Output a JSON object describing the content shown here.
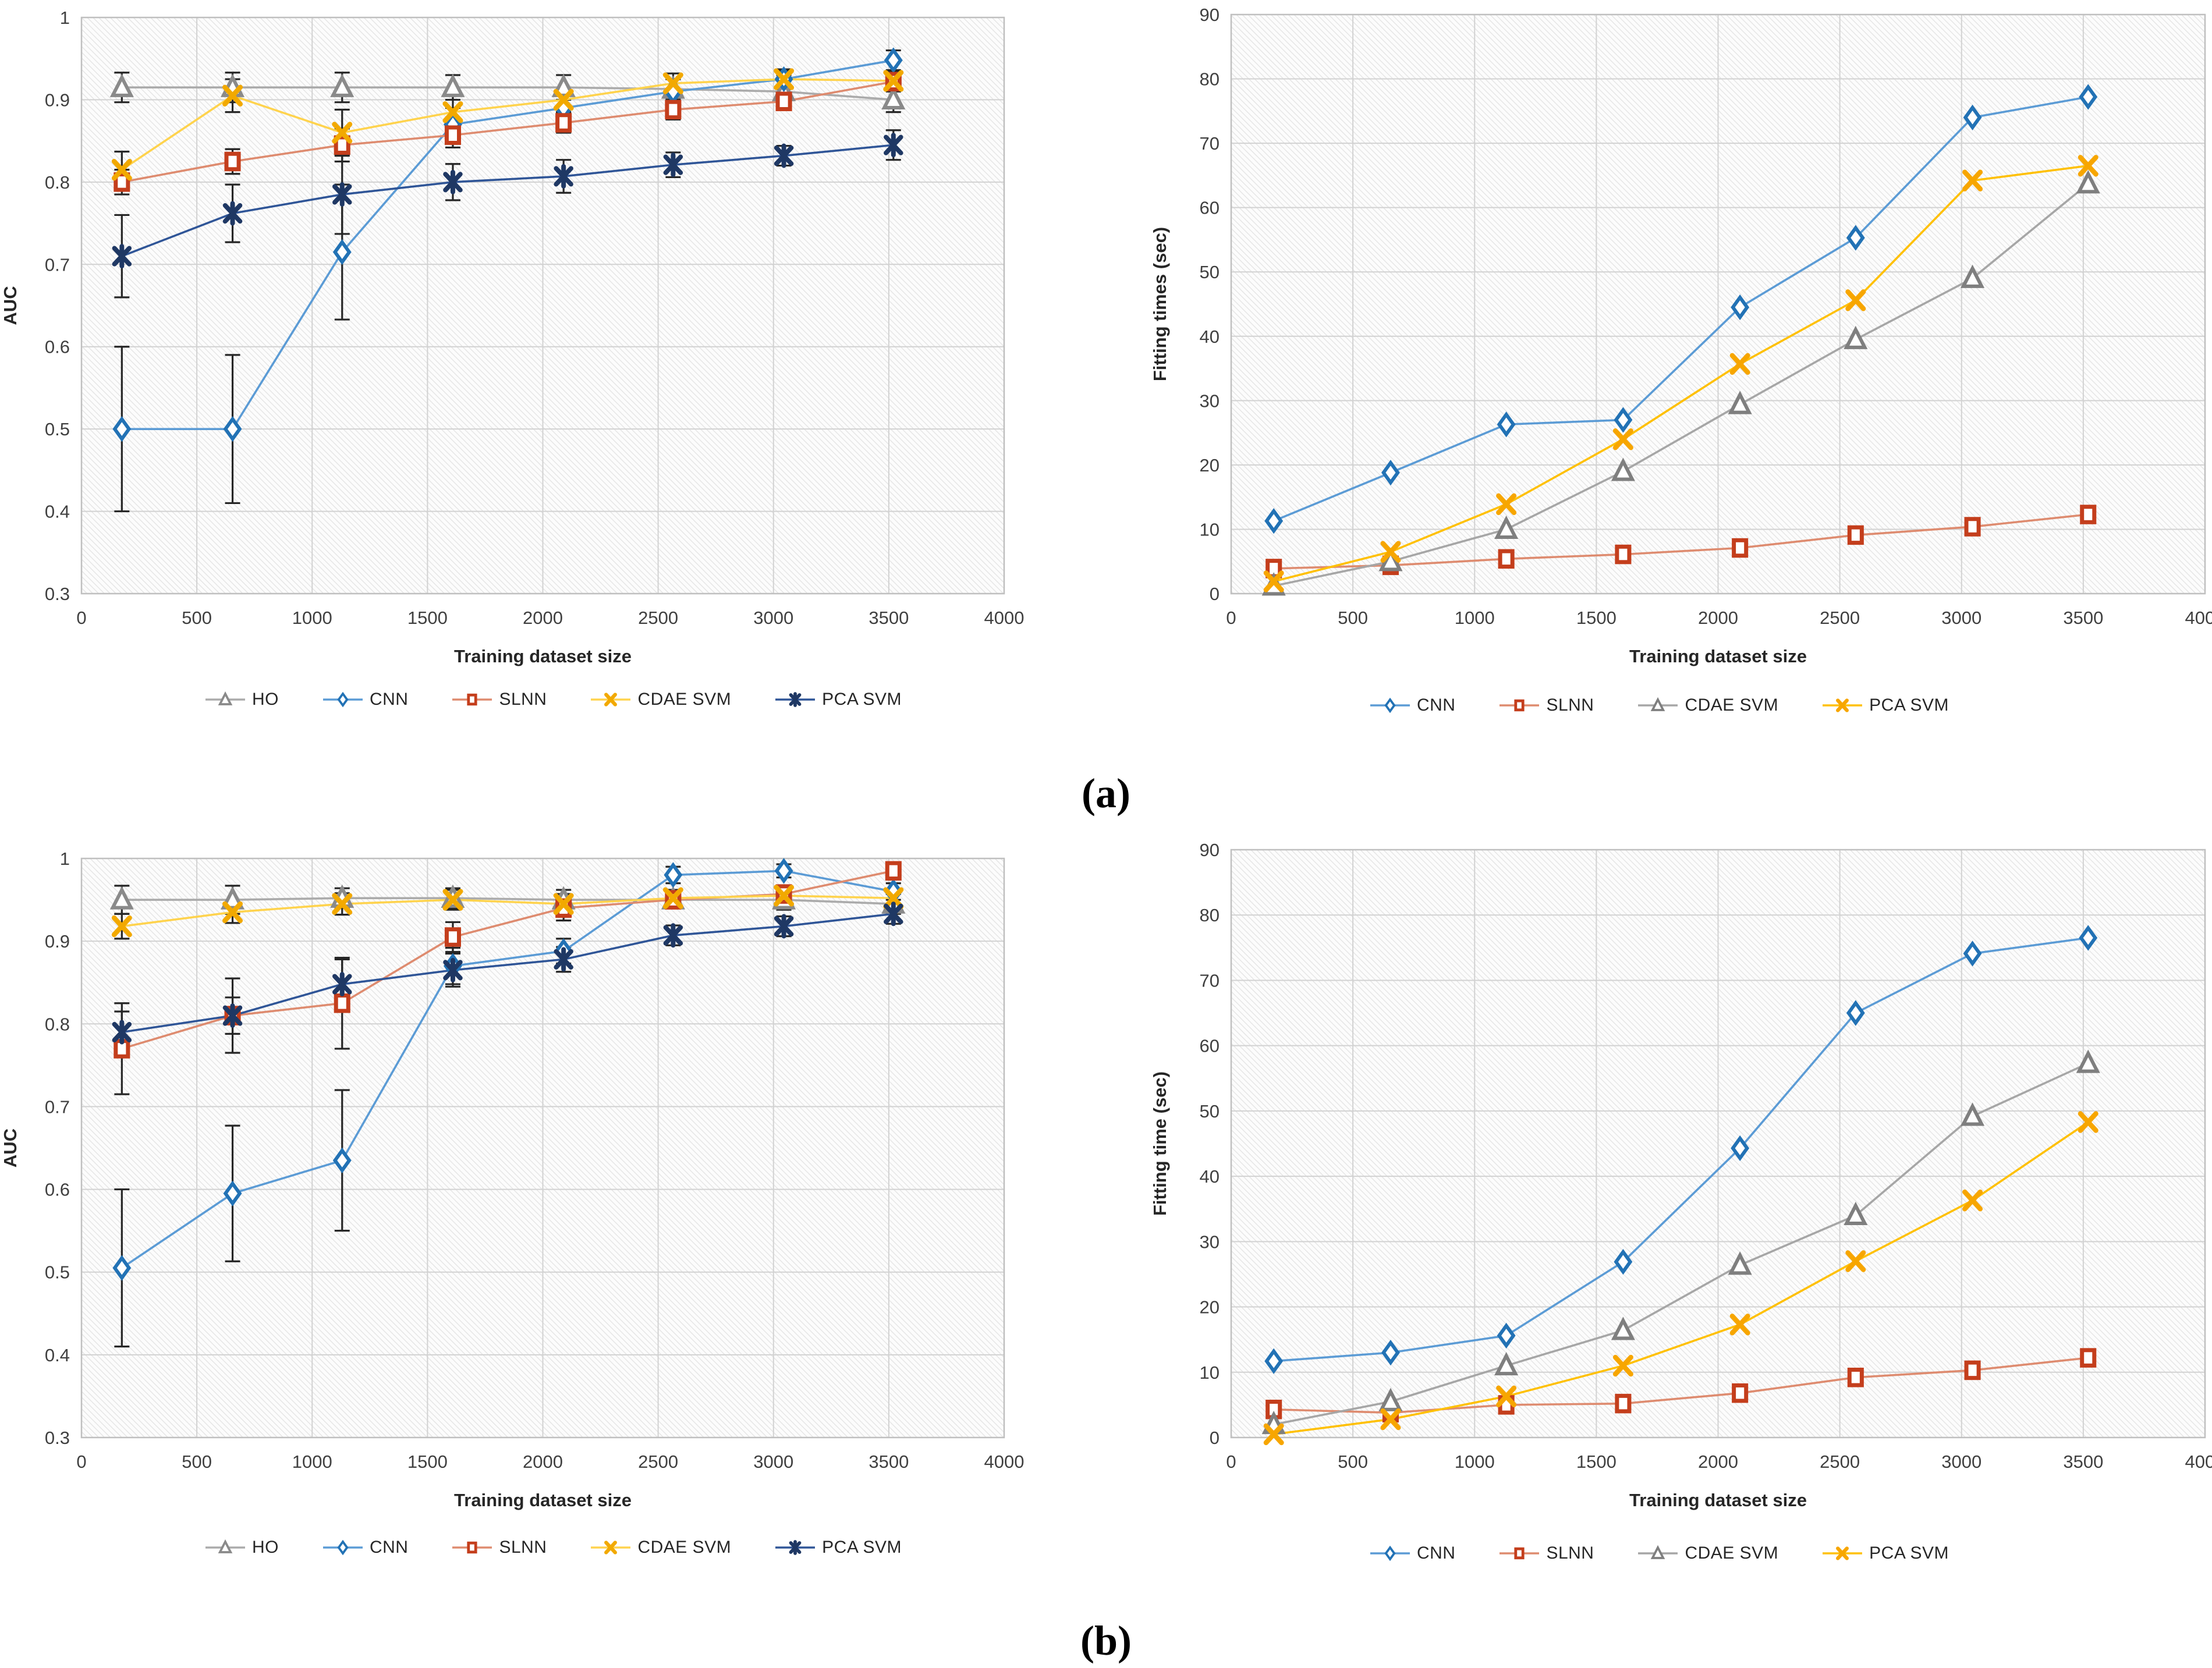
{
  "panel_labels": {
    "a": "(a)",
    "b": "(b)"
  },
  "chart_data": [
    {
      "id": "auc-panel-a",
      "type": "line",
      "title": "",
      "xlabel": "Training dataset size",
      "ylabel": "AUC",
      "xlim": [
        0,
        4000,
        500
      ],
      "ylim": [
        0.3,
        1.0,
        0.1
      ],
      "grid": true,
      "legend_position": "bottom",
      "x": [
        175,
        655,
        1130,
        1610,
        2090,
        2565,
        3045,
        3520
      ],
      "series": [
        {
          "name": "HO",
          "marker": "triangle",
          "color": "#8A8A8A",
          "line_color": "#ABABAB",
          "values": [
            0.915,
            0.915,
            0.915,
            0.915,
            0.915,
            0.913,
            0.91,
            0.9
          ],
          "err": [
            0.018,
            0.018,
            0.018,
            0.015,
            0.015,
            0.012,
            0.02,
            0.015
          ]
        },
        {
          "name": "CNN",
          "marker": "diamond",
          "color": "#2272B5",
          "line_color": "#5B9BD5",
          "values": [
            0.5,
            0.5,
            0.715,
            0.87,
            0.89,
            0.91,
            0.925,
            0.948
          ],
          "err": [
            0.1,
            0.09,
            0.082,
            0.02,
            0.018,
            0.015,
            0.012,
            0.012
          ]
        },
        {
          "name": "SLNN",
          "marker": "square",
          "color": "#C43E1C",
          "line_color": "#DE8B6F",
          "values": [
            0.8,
            0.825,
            0.845,
            0.857,
            0.872,
            0.888,
            0.898,
            0.922
          ],
          "err": [
            0.015,
            0.015,
            0.02,
            0.015,
            0.012,
            0.012,
            0.01,
            0.012
          ]
        },
        {
          "name": "CDAE SVM",
          "marker": "x",
          "color": "#F2A900",
          "line_color": "#FFD34D",
          "values": [
            0.815,
            0.905,
            0.86,
            0.885,
            0.9,
            0.92,
            0.925,
            0.923
          ],
          "err": [
            0.022,
            0.02,
            0.028,
            0.02,
            0.015,
            0.012,
            0.01,
            0.01
          ]
        },
        {
          "name": "PCA SVM",
          "marker": "xstar",
          "color": "#1F3864",
          "line_color": "#2F5597",
          "values": [
            0.71,
            0.762,
            0.785,
            0.8,
            0.807,
            0.821,
            0.832,
            0.845
          ],
          "err": [
            0.05,
            0.035,
            0.048,
            0.022,
            0.02,
            0.015,
            0.012,
            0.018
          ]
        }
      ]
    },
    {
      "id": "fitting-times-panel-a",
      "type": "line",
      "title": "",
      "xlabel": "Training dataset size",
      "ylabel": "Fitting times (sec)",
      "xlim": [
        0,
        4000,
        500
      ],
      "ylim": [
        0,
        90,
        10
      ],
      "grid": true,
      "legend_position": "bottom",
      "x": [
        175,
        655,
        1130,
        1610,
        2090,
        2565,
        3045,
        3520
      ],
      "series": [
        {
          "name": "CNN",
          "marker": "diamond",
          "color": "#2272B5",
          "line_color": "#5B9BD5",
          "values": [
            11.3,
            18.8,
            26.3,
            27.0,
            44.5,
            55.3,
            74.0,
            77.2
          ]
        },
        {
          "name": "SLNN",
          "marker": "square",
          "color": "#C43E1C",
          "line_color": "#DE8B6F",
          "values": [
            3.9,
            4.4,
            5.4,
            6.1,
            7.1,
            9.1,
            10.4,
            12.3
          ]
        },
        {
          "name": "CDAE SVM",
          "marker": "triangle",
          "color": "#7F7F7F",
          "line_color": "#A6A6A6",
          "values": [
            1.2,
            5.0,
            10.0,
            19.0,
            29.4,
            39.5,
            49.0,
            63.7
          ]
        },
        {
          "name": "PCA SVM",
          "marker": "x",
          "color": "#F7A600",
          "line_color": "#FFC000",
          "values": [
            1.9,
            6.5,
            13.9,
            24.0,
            35.7,
            45.6,
            64.2,
            66.5
          ]
        }
      ]
    },
    {
      "id": "auc-panel-b",
      "type": "line",
      "title": "",
      "xlabel": "Training dataset size",
      "ylabel": "AUC",
      "xlim": [
        0,
        4000,
        500
      ],
      "ylim": [
        0.3,
        1.0,
        0.1
      ],
      "grid": true,
      "legend_position": "bottom",
      "x": [
        175,
        655,
        1130,
        1610,
        2090,
        2565,
        3045,
        3520
      ],
      "series": [
        {
          "name": "HO",
          "marker": "triangle",
          "color": "#8A8A8A",
          "line_color": "#ABABAB",
          "values": [
            0.95,
            0.95,
            0.952,
            0.952,
            0.95,
            0.95,
            0.95,
            0.945
          ],
          "err": [
            0.017,
            0.017,
            0.012,
            0.012,
            0.012,
            0.01,
            0.012,
            0.012
          ]
        },
        {
          "name": "CNN",
          "marker": "diamond",
          "color": "#2272B5",
          "line_color": "#5B9BD5",
          "values": [
            0.505,
            0.595,
            0.635,
            0.87,
            0.888,
            0.98,
            0.985,
            0.96
          ],
          "err": [
            0.095,
            0.082,
            0.085,
            0.022,
            0.015,
            0.01,
            0.008,
            0.01
          ]
        },
        {
          "name": "SLNN",
          "marker": "square",
          "color": "#C43E1C",
          "line_color": "#DE8B6F",
          "values": [
            0.77,
            0.81,
            0.825,
            0.905,
            0.94,
            0.95,
            0.957,
            0.985
          ],
          "err": [
            0.055,
            0.045,
            0.055,
            0.018,
            0.015,
            0.01,
            0.01,
            0.008
          ]
        },
        {
          "name": "CDAE SVM",
          "marker": "x",
          "color": "#F2A900",
          "line_color": "#FFD34D",
          "values": [
            0.918,
            0.935,
            0.945,
            0.95,
            0.945,
            0.952,
            0.955,
            0.952
          ],
          "err": [
            0.015,
            0.013,
            0.013,
            0.012,
            0.012,
            0.01,
            0.008,
            0.008
          ]
        },
        {
          "name": "PCA SVM",
          "marker": "xstar",
          "color": "#1F3864",
          "line_color": "#2F5597",
          "values": [
            0.79,
            0.81,
            0.848,
            0.865,
            0.878,
            0.907,
            0.918,
            0.933
          ],
          "err": [
            0.025,
            0.022,
            0.03,
            0.02,
            0.015,
            0.012,
            0.012,
            0.012
          ]
        }
      ]
    },
    {
      "id": "fitting-time-panel-b",
      "type": "line",
      "title": "",
      "xlabel": "Training dataset size",
      "ylabel": "Fitting time (sec)",
      "xlim": [
        0,
        4000,
        500
      ],
      "ylim": [
        0,
        90,
        10
      ],
      "grid": true,
      "legend_position": "bottom",
      "x": [
        175,
        655,
        1130,
        1610,
        2090,
        2565,
        3045,
        3520
      ],
      "series": [
        {
          "name": "CNN",
          "marker": "diamond",
          "color": "#2272B5",
          "line_color": "#5B9BD5",
          "values": [
            11.7,
            13.0,
            15.6,
            26.9,
            44.3,
            65.0,
            74.1,
            76.5
          ]
        },
        {
          "name": "SLNN",
          "marker": "square",
          "color": "#C43E1C",
          "line_color": "#DE8B6F",
          "values": [
            4.3,
            3.8,
            5.0,
            5.2,
            6.8,
            9.2,
            10.3,
            12.2
          ]
        },
        {
          "name": "CDAE SVM",
          "marker": "triangle",
          "color": "#7F7F7F",
          "line_color": "#A6A6A6",
          "values": [
            2.0,
            5.5,
            11.0,
            16.4,
            26.4,
            34.0,
            49.2,
            57.3
          ]
        },
        {
          "name": "PCA SVM",
          "marker": "x",
          "color": "#F7A600",
          "line_color": "#FFC000",
          "values": [
            0.5,
            2.8,
            6.3,
            11.0,
            17.3,
            27.0,
            36.3,
            48.3
          ]
        }
      ]
    }
  ]
}
